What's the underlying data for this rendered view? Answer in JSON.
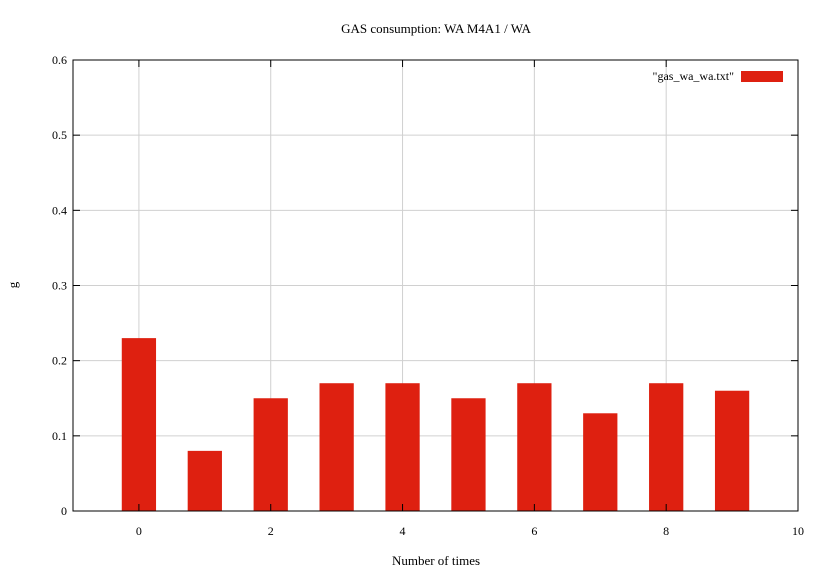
{
  "chart_data": {
    "type": "bar",
    "title": "GAS consumption: WA M4A1 / WA",
    "xlabel": "Number of times",
    "ylabel": "g",
    "x": [
      0,
      1,
      2,
      3,
      4,
      5,
      6,
      7,
      8,
      9
    ],
    "series": [
      {
        "name": "\"gas_wa_wa.txt\"",
        "values": [
          0.23,
          0.08,
          0.15,
          0.17,
          0.17,
          0.15,
          0.17,
          0.13,
          0.17,
          0.16
        ]
      }
    ],
    "xlim": [
      -1,
      10
    ],
    "ylim": [
      0,
      0.6
    ],
    "xticks": [
      0,
      2,
      4,
      6,
      8,
      10
    ],
    "xtick_labels": [
      "0",
      "2",
      "4",
      "6",
      "8",
      "10"
    ],
    "yticks": [
      0,
      0.1,
      0.2,
      0.3,
      0.4,
      0.5,
      0.6
    ],
    "ytick_labels": [
      "0",
      "0.1",
      "0.2",
      "0.3",
      "0.4",
      "0.5",
      "0.6"
    ],
    "grid": true,
    "legend_position": "top-right",
    "bar_color": "#de2010",
    "grid_color": "#d0d0d0"
  }
}
